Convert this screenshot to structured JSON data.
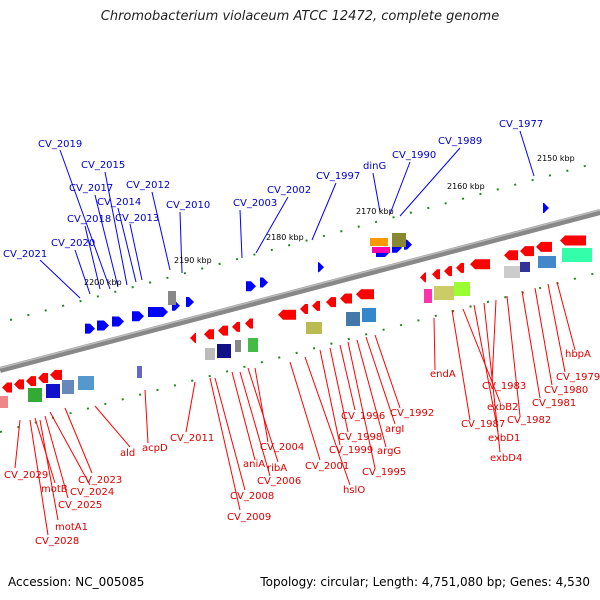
{
  "title": "Chromobacterium violaceum ATCC 12472, complete genome",
  "footer": {
    "accession": "Accession: NC_005085",
    "summary": "Topology: circular; Length: 4,751,080 bp; Genes: 4,530"
  },
  "colors": {
    "forward_label": "#0000cc",
    "reverse_label": "#dd0000",
    "forward_feature": "#0000ff",
    "reverse_feature": "#ff0000",
    "backbone": "#888888",
    "tick": "#228822"
  },
  "scale_labels": [
    "2150 kbp",
    "2160 kbp",
    "2170 kbp",
    "2180 kbp",
    "2190 kbp",
    "2200 kbp"
  ],
  "forward_labels": [
    "CV_2021",
    "CV_2020",
    "CV_2019",
    "CV_2018",
    "CV_2017",
    "CV_2015",
    "CV_2014",
    "CV_2013",
    "CV_2012",
    "CV_2010",
    "CV_2003",
    "CV_2002",
    "CV_1997",
    "dinG",
    "CV_1990",
    "CV_1989",
    "CV_1977"
  ],
  "reverse_labels": [
    "CV_2029",
    "motB",
    "CV_2024",
    "CV_2025",
    "CV_2023",
    "motA1",
    "CV_2028",
    "ald",
    "acpD",
    "CV_2011",
    "CV_2008",
    "CV_2009",
    "aniA",
    "CV_2006",
    "ribA",
    "CV_2004",
    "CV_2001",
    "hslO",
    "CV_1999",
    "CV_1998",
    "CV_1996",
    "CV_1995",
    "argG",
    "argI",
    "CV_1992",
    "endA",
    "CV_1987",
    "exbB2",
    "exbD1",
    "exbD4",
    "CV_1983",
    "CV_1982",
    "CV_1981",
    "CV_1980",
    "CV_1979",
    "hbpA"
  ]
}
